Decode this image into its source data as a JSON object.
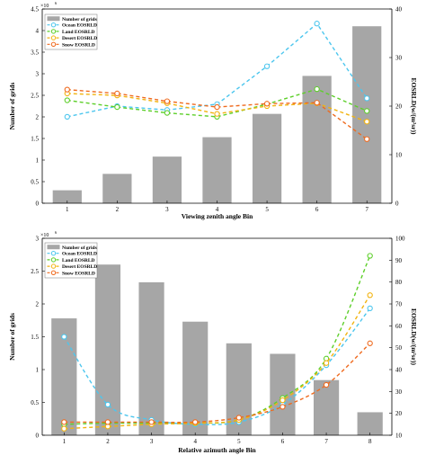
{
  "chart_data": [
    {
      "type": "bar",
      "xlabel": "Viewing zenith angle Bin",
      "ylabel": "Number of grids",
      "ylabel_right": "EOSRLD(w/(m²sr))",
      "y_multiplier": "×10",
      "y_multiplier_exp": "6",
      "categories": [
        "1",
        "2",
        "3",
        "4",
        "5",
        "6",
        "7"
      ],
      "ylim": [
        0,
        4.5
      ],
      "yticks": [
        "0",
        "0.5",
        "1",
        "1.5",
        "2",
        "2.5",
        "3",
        "3.5",
        "4",
        "4.5"
      ],
      "ylim_right": [
        0,
        40
      ],
      "yticks_right": [
        "0",
        "10",
        "20",
        "30",
        "40"
      ],
      "bar_series": {
        "name": "Number of grids",
        "values": [
          0.3,
          0.68,
          1.08,
          1.53,
          2.07,
          2.95,
          4.1
        ]
      },
      "series": [
        {
          "name": "Ocean EOSRLD",
          "axis": "right",
          "values": [
            17.8,
            20.0,
            19.2,
            20.4,
            28.2,
            37.0,
            21.6
          ]
        },
        {
          "name": "Land EOSRLD",
          "axis": "right",
          "values": [
            21.2,
            19.8,
            18.6,
            17.8,
            20.4,
            23.5,
            19.0
          ]
        },
        {
          "name": "Desert EOSRLD",
          "axis": "right",
          "values": [
            22.6,
            22.2,
            20.6,
            18.4,
            20.0,
            20.6,
            16.8
          ]
        },
        {
          "name": "Snow EOSRLD",
          "axis": "right",
          "values": [
            23.4,
            22.6,
            21.0,
            19.8,
            20.5,
            20.7,
            13.2
          ]
        }
      ],
      "legend_placement": "top-left",
      "grid": false
    },
    {
      "type": "bar",
      "xlabel": "Relative azimuth angle Bin",
      "ylabel": "Number of grids",
      "ylabel_right": "EOSRLD(w/(m²sr))",
      "y_multiplier": "×10",
      "y_multiplier_exp": "6",
      "categories": [
        "1",
        "2",
        "3",
        "4",
        "5",
        "6",
        "7",
        "8"
      ],
      "ylim": [
        0,
        3
      ],
      "yticks": [
        "0",
        "0.5",
        "1",
        "1.5",
        "2",
        "2.5",
        "3"
      ],
      "ylim_right": [
        10,
        100
      ],
      "yticks_right": [
        "10",
        "20",
        "30",
        "40",
        "50",
        "60",
        "70",
        "80",
        "90",
        "100"
      ],
      "bar_series": {
        "name": "Number of grids",
        "values": [
          1.78,
          2.6,
          2.33,
          1.73,
          1.4,
          1.24,
          0.84,
          0.35
        ]
      },
      "series": [
        {
          "name": "Ocean EOSRLD",
          "axis": "right",
          "values": [
            55,
            24,
            17,
            15,
            16,
            24,
            42,
            68
          ]
        },
        {
          "name": "Land EOSRLD",
          "axis": "right",
          "values": [
            15,
            15.5,
            15.5,
            15.5,
            17,
            27,
            45,
            92
          ]
        },
        {
          "name": "Desert EOSRLD",
          "axis": "right",
          "values": [
            13,
            14,
            15,
            15.5,
            17,
            26,
            43,
            74
          ]
        },
        {
          "name": "Snow EOSRLD",
          "axis": "right",
          "values": [
            16,
            16,
            16,
            16,
            18,
            23,
            33,
            52
          ]
        }
      ],
      "legend_placement": "top-left",
      "grid": false
    }
  ],
  "colors": {
    "bar": "#a6a6a6",
    "ocean": "#4cc6ee",
    "land": "#5dcf2a",
    "desert": "#f2b30f",
    "snow": "#ef6a1e",
    "axis": "#000000"
  }
}
